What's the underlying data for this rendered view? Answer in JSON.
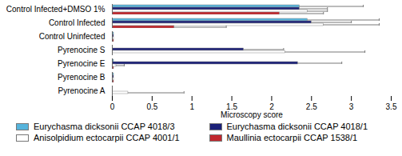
{
  "chart_data": {
    "type": "bar",
    "orientation": "horizontal",
    "x_label": "Microscopy score",
    "categories": [
      "Control Infected+DMSO 1%",
      "Control Infected",
      "Control Uninfected",
      "Pyrenocine S",
      "Pyrenocine E",
      "Pyrenocine B",
      "Pyrenocine A"
    ],
    "series": [
      {
        "name": "Eurychasma dicksonii CCAP 4018/3",
        "color": "#56b4dc",
        "values": [
          2.35,
          2.45,
          0.02,
          0,
          0.02,
          0.02,
          0
        ],
        "errors": [
          0.8,
          0.9,
          0,
          0,
          0,
          0,
          0
        ]
      },
      {
        "name": "Eurychasma dicksonii CCAP 4018/1",
        "color": "#1b2078",
        "values": [
          2.35,
          2.5,
          0.02,
          1.65,
          2.33,
          0.02,
          0
        ],
        "errors": [
          0.35,
          0.5,
          0,
          0.5,
          0.55,
          0,
          0
        ]
      },
      {
        "name": "Anisolpidium ectocarpii CCAP 4001/1",
        "color": "#ffffff",
        "values": [
          2.45,
          2.65,
          0.02,
          2.17,
          0.05,
          0.02,
          0.2
        ],
        "errors": [
          0.25,
          0.7,
          0,
          1.0,
          0.1,
          0,
          0.7
        ]
      },
      {
        "name": "Maullinia ectocarpii CCAP 1538/1",
        "color": "#c1272d",
        "values": [
          2.1,
          0.78,
          0.02,
          0,
          0.02,
          0.02,
          0
        ],
        "errors": [
          0.55,
          0.65,
          0,
          0,
          0,
          0,
          0
        ]
      }
    ],
    "xlim": [
      0,
      3.5
    ],
    "xticks": [
      0,
      0.5,
      1,
      1.5,
      2,
      2.5,
      3,
      3.5
    ],
    "grid": false,
    "legend": "bottom"
  }
}
